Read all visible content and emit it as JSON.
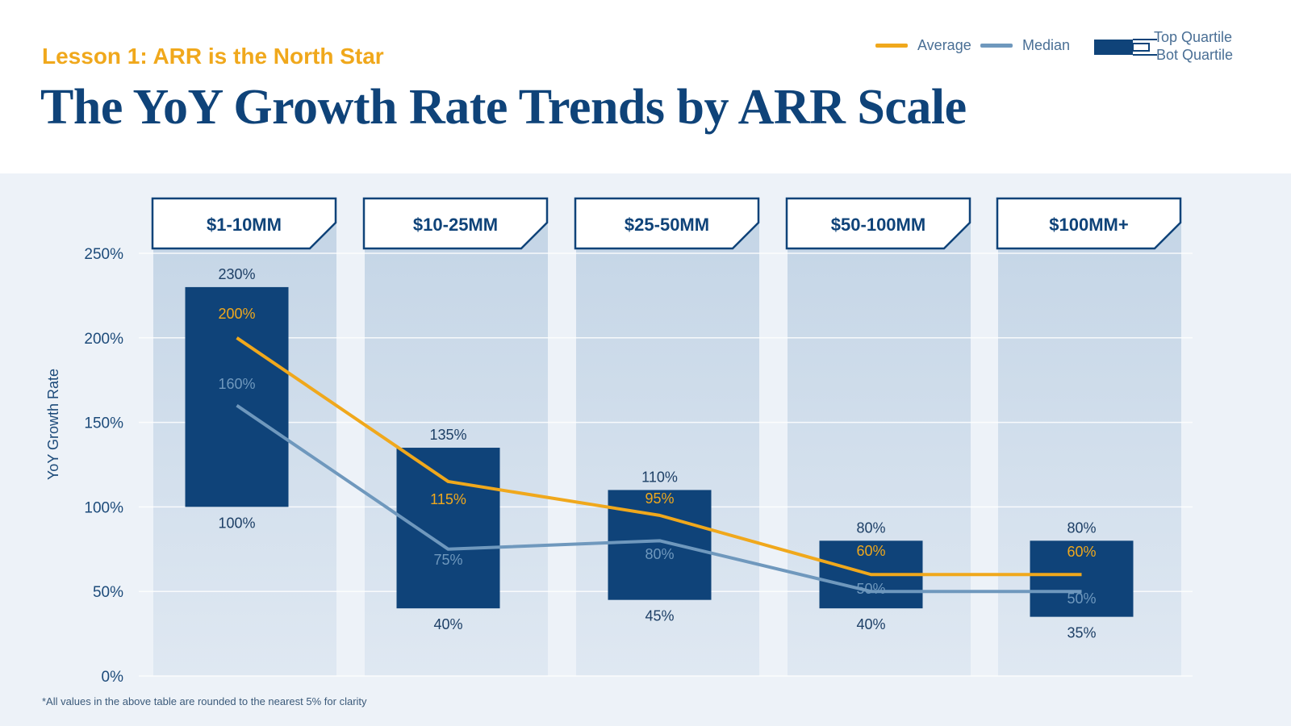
{
  "header": {
    "subtitle": "Lesson 1: ARR is the North Star",
    "title": "The YoY Growth Rate Trends by ARR Scale"
  },
  "legend": {
    "average": "Average",
    "median": "Median",
    "top_quartile": "Top Quartile",
    "bot_quartile": "Bot Quartile"
  },
  "footnote": "*All values in the above table are rounded to the nearest 5% for clarity",
  "colors": {
    "average": "#f0a81c",
    "median": "#6f98bd",
    "bar": "#0f4379",
    "panel": "#c9d9e8",
    "background": "#edf2f8"
  },
  "chart_data": {
    "type": "bar",
    "title": "The YoY Growth Rate Trends by ARR Scale",
    "ylabel": "YoY Growth Rate",
    "xlabel": "",
    "ylim": [
      0,
      250
    ],
    "yticks": [
      "0%",
      "50%",
      "100%",
      "150%",
      "200%",
      "250%"
    ],
    "ytick_values": [
      0,
      50,
      100,
      150,
      200,
      250
    ],
    "categories": [
      "$1-10MM",
      "$10-25MM",
      "$25-50MM",
      "$50-100MM",
      "$100MM+"
    ],
    "series": [
      {
        "name": "Top Quartile",
        "values": [
          230,
          135,
          110,
          80,
          80
        ]
      },
      {
        "name": "Bot Quartile",
        "values": [
          100,
          40,
          45,
          40,
          35
        ]
      },
      {
        "name": "Average",
        "values": [
          200,
          115,
          95,
          60,
          60
        ]
      },
      {
        "name": "Median",
        "values": [
          160,
          75,
          80,
          50,
          50
        ]
      }
    ],
    "labels": {
      "top": [
        "230%",
        "135%",
        "110%",
        "80%",
        "80%"
      ],
      "bot": [
        "100%",
        "40%",
        "45%",
        "40%",
        "35%"
      ],
      "average": [
        "200%",
        "115%",
        "95%",
        "60%",
        "60%"
      ],
      "median": [
        "160%",
        "75%",
        "80%",
        "50%",
        "50%"
      ]
    },
    "grid": true,
    "legend_position": "top-right"
  }
}
